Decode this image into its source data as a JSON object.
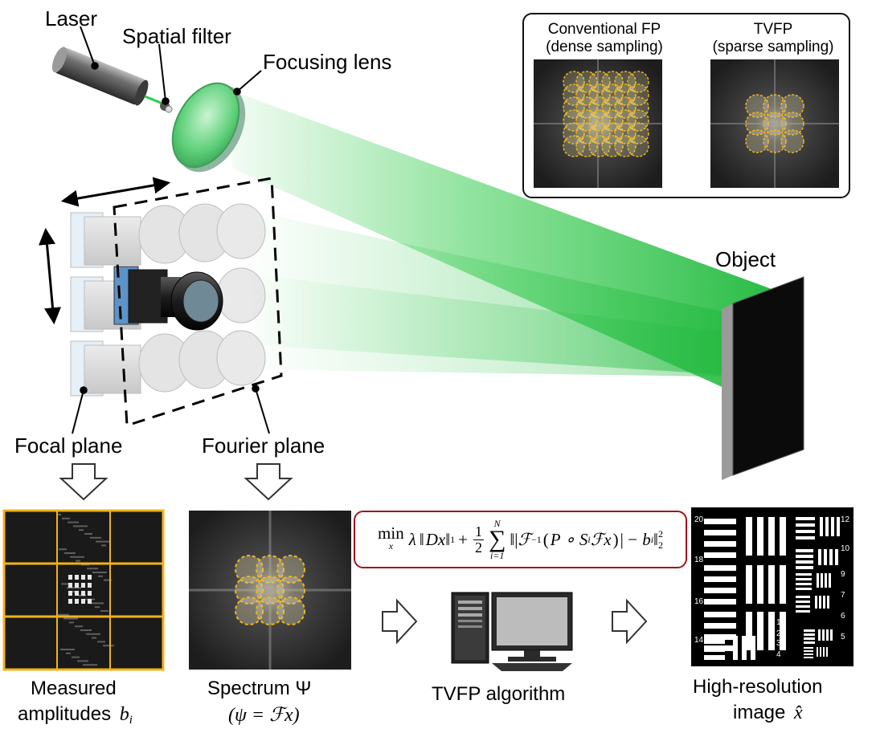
{
  "labels": {
    "laser": "Laser",
    "spatial_filter": "Spatial filter",
    "focusing_lens": "Focusing lens",
    "object": "Object",
    "focal_plane": "Focal plane",
    "fourier_plane": "Fourier plane",
    "measured_line1": "Measured",
    "measured_line2": "amplitudes",
    "measured_symbol": "b",
    "measured_sub": "i",
    "spectrum_line1": "Spectrum Ψ",
    "spectrum_line2": "(ψ = ℱx)",
    "algorithm": "TVFP algorithm",
    "hr_line1": "High-resolution",
    "hr_line2": "image",
    "hr_symbol": "x̂"
  },
  "inset": {
    "left_title_1": "Conventional FP",
    "left_title_2": "(dense sampling)",
    "right_title_1": "TVFP",
    "right_title_2": "(sparse sampling)"
  },
  "formula": {
    "min": "min",
    "min_sub": "x",
    "lambda": "λ",
    "tv_term": "Dx",
    "norm1": "1",
    "half_num": "1",
    "half_den": "2",
    "sum_top": "N",
    "sum_bottom": "i=1",
    "operator": "ℱ",
    "inverse": "−1",
    "inner": "P ∘ S",
    "inner_sub": "i",
    "inner_tail": "ℱx",
    "minus_b": "− b",
    "b_sub": "i",
    "sq": "2",
    "norm2": "2"
  },
  "target_numbers": [
    "20",
    "12",
    "18",
    "10",
    "9",
    "16",
    "7",
    "6",
    "14",
    "5",
    "1",
    "2",
    "3",
    "4"
  ],
  "colors": {
    "beam": "#2fd04a",
    "lens": "#6fd98a",
    "highlight_frame": "#f2b21b",
    "formula_border": "#a2141b",
    "sampling_circle": "#f0b41e"
  }
}
